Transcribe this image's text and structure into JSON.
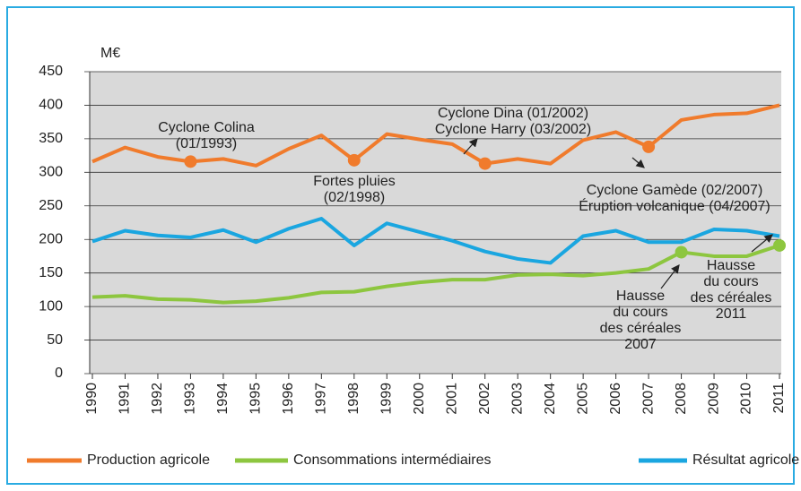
{
  "chart_data": {
    "type": "line",
    "y_label": "M€",
    "categories": [
      "1990",
      "1991",
      "1992",
      "1993",
      "1994",
      "1995",
      "1996",
      "1997",
      "1998",
      "1999",
      "2000",
      "2001",
      "2002",
      "2003",
      "2004",
      "2005",
      "2006",
      "2007",
      "2008",
      "2009",
      "2010",
      "2011"
    ],
    "series": [
      {
        "name": "Production agricole",
        "color": "#f07b2c",
        "values": [
          316,
          337,
          323,
          316,
          320,
          310,
          335,
          355,
          318,
          357,
          349,
          342,
          313,
          320,
          313,
          348,
          360,
          338,
          378,
          386,
          388,
          400
        ]
      },
      {
        "name": "Consommations intermédiaires",
        "color": "#8dc63f",
        "values": [
          114,
          116,
          111,
          110,
          106,
          108,
          113,
          121,
          122,
          130,
          136,
          140,
          140,
          147,
          148,
          146,
          150,
          156,
          181,
          175,
          175,
          191
        ]
      },
      {
        "name": "Résultat agricole",
        "color": "#1aa6e0",
        "values": [
          197,
          213,
          206,
          203,
          214,
          196,
          216,
          231,
          191,
          224,
          211,
          198,
          182,
          171,
          165,
          205,
          213,
          196,
          196,
          215,
          213,
          205
        ]
      }
    ],
    "ylim": [
      0,
      450
    ],
    "yticks": [
      0,
      50,
      100,
      150,
      200,
      250,
      300,
      350,
      400,
      450
    ],
    "grid": true,
    "annotations": [
      {
        "lines": [
          "Cyclone Colina",
          "(01/1993)"
        ]
      },
      {
        "lines": [
          "Fortes pluies",
          "(02/1998)"
        ]
      },
      {
        "lines": [
          "Cyclone Dina (01/2002)",
          "Cyclone Harry (03/2002)"
        ]
      },
      {
        "lines": [
          "Cyclone Gamède (02/2007)",
          "Éruption volcanique (04/2007)"
        ]
      },
      {
        "lines": [
          "Hausse",
          "du cours",
          "des céréales",
          "2007"
        ]
      },
      {
        "lines": [
          "Hausse",
          "du cours",
          "des céréales",
          "2011"
        ]
      }
    ]
  }
}
